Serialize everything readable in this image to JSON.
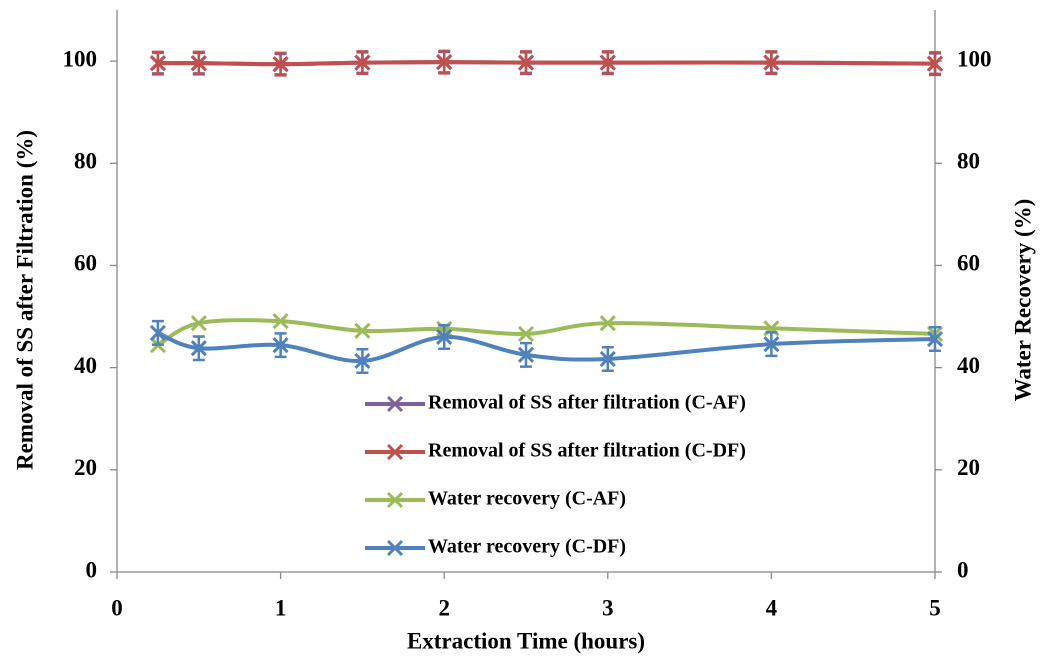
{
  "chart_data": {
    "type": "line",
    "x_label": "Extraction Time (hours)",
    "y_label": "Removal of SS after Filtration (%)",
    "y2_label": "Water Recovery (%)",
    "x": [
      0.25,
      0.5,
      1,
      1.5,
      2,
      2.5,
      3,
      4,
      5
    ],
    "series": [
      {
        "name": "Removal of SS after filtration (C-AF)",
        "color": "#7e5fa0",
        "values": [
          99.6,
          99.6,
          99.4,
          99.7,
          99.8,
          99.7,
          99.7,
          99.7,
          99.5
        ],
        "errors": [
          2,
          2,
          2,
          2,
          2,
          2,
          2,
          2,
          2
        ]
      },
      {
        "name": "Removal of SS after filtration (C-DF)",
        "color": "#c0504d",
        "values": [
          99.6,
          99.6,
          99.4,
          99.7,
          99.8,
          99.7,
          99.7,
          99.7,
          99.5
        ],
        "errors": [
          2.2,
          2.2,
          2.2,
          2.2,
          2.2,
          2.2,
          2.2,
          2.2,
          2.2
        ]
      },
      {
        "name": "Water recovery (C-AF)",
        "color": "#9bbb59",
        "axis": "y2",
        "values": [
          44.4,
          48.7,
          49.1,
          47.2,
          47.6,
          46.6,
          48.7,
          47.7,
          46.6
        ]
      },
      {
        "name": "Water recovery (C-DF)",
        "color": "#4f81bd",
        "axis": "y2",
        "values": [
          46.8,
          43.8,
          44.4,
          41.3,
          46.0,
          42.5,
          41.7,
          44.6,
          45.6
        ],
        "errors": [
          2.3,
          2.3,
          2.3,
          2.3,
          2.3,
          2.3,
          2.3,
          2.3,
          2.3
        ]
      }
    ],
    "xlim": [
      0,
      5
    ],
    "xticks": [
      0,
      1,
      2,
      3,
      4,
      5
    ],
    "ylim": [
      0,
      110
    ],
    "yticks": [
      0,
      20,
      40,
      60,
      80,
      100
    ],
    "y2lim": [
      0,
      110
    ],
    "y2ticks": [
      0,
      20,
      40,
      60,
      80,
      100
    ],
    "smooth": true
  }
}
